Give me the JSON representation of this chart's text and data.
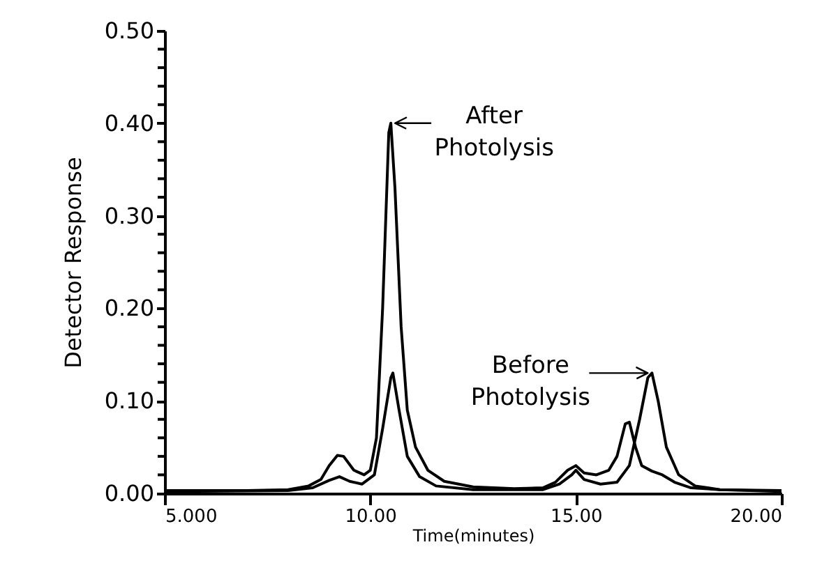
{
  "chart_data": {
    "type": "line",
    "xlabel": "Time(minutes)",
    "ylabel": "Detector Response",
    "series": [
      {
        "color": "#000000",
        "x": [
          5.0,
          6.0,
          7.0,
          8.0,
          8.5,
          8.8,
          9.0,
          9.2,
          9.35,
          9.6,
          9.85,
          10.0,
          10.15,
          10.3,
          10.45,
          10.5,
          10.6,
          10.75,
          10.9,
          11.1,
          11.4,
          11.8,
          12.5,
          13.5,
          14.2,
          14.5,
          14.8,
          15.0,
          15.2,
          15.5,
          15.8,
          16.0,
          16.2,
          16.3,
          16.45,
          16.6,
          16.85,
          17.1,
          17.4,
          17.8,
          18.5,
          20.0
        ],
        "values": [
          0.003,
          0.003,
          0.003,
          0.004,
          0.008,
          0.015,
          0.03,
          0.041,
          0.04,
          0.025,
          0.02,
          0.025,
          0.06,
          0.2,
          0.39,
          0.4,
          0.33,
          0.18,
          0.09,
          0.05,
          0.025,
          0.013,
          0.007,
          0.005,
          0.006,
          0.012,
          0.025,
          0.03,
          0.022,
          0.02,
          0.025,
          0.04,
          0.075,
          0.077,
          0.05,
          0.03,
          0.024,
          0.02,
          0.012,
          0.006,
          0.004,
          0.003
        ]
      },
      {
        "color": "#000000",
        "x": [
          5.0,
          8.0,
          8.6,
          9.0,
          9.25,
          9.5,
          9.8,
          10.1,
          10.3,
          10.5,
          10.55,
          10.7,
          10.9,
          11.2,
          11.6,
          12.5,
          14.2,
          14.6,
          14.9,
          15.0,
          15.2,
          15.6,
          16.0,
          16.3,
          16.55,
          16.75,
          16.85,
          17.0,
          17.2,
          17.5,
          17.9,
          18.5,
          20.0
        ],
        "values": [
          0.002,
          0.003,
          0.006,
          0.014,
          0.018,
          0.013,
          0.01,
          0.02,
          0.07,
          0.125,
          0.13,
          0.09,
          0.04,
          0.018,
          0.008,
          0.004,
          0.004,
          0.01,
          0.02,
          0.025,
          0.015,
          0.01,
          0.012,
          0.03,
          0.08,
          0.125,
          0.13,
          0.1,
          0.05,
          0.02,
          0.008,
          0.004,
          0.002
        ]
      }
    ],
    "annotations": [
      {
        "text": "After Photolysis",
        "x": 10.5,
        "y": 0.4
      },
      {
        "text": "Before Photolysis",
        "x": 16.85,
        "y": 0.13
      }
    ],
    "xlim": [
      5,
      20
    ],
    "xticks": [
      {
        "value": 5,
        "label": "5.000"
      },
      {
        "value": 10,
        "label": "10.00"
      },
      {
        "value": 15,
        "label": "15.00"
      },
      {
        "value": 20,
        "label": "20.00"
      }
    ],
    "ylim": [
      0,
      0.5
    ],
    "yticks": [
      {
        "value": 0,
        "label": "0.00"
      },
      {
        "value": 0.02,
        "label": null
      },
      {
        "value": 0.04,
        "label": null
      },
      {
        "value": 0.06,
        "label": null
      },
      {
        "value": 0.08,
        "label": null
      },
      {
        "value": 0.1,
        "label": "0.10"
      },
      {
        "value": 0.12,
        "label": null
      },
      {
        "value": 0.14,
        "label": null
      },
      {
        "value": 0.16,
        "label": null
      },
      {
        "value": 0.18,
        "label": null
      },
      {
        "value": 0.2,
        "label": "0.20"
      },
      {
        "value": 0.22,
        "label": null
      },
      {
        "value": 0.24,
        "label": null
      },
      {
        "value": 0.26,
        "label": null
      },
      {
        "value": 0.28,
        "label": null
      },
      {
        "value": 0.3,
        "label": "0.30"
      },
      {
        "value": 0.32,
        "label": null
      },
      {
        "value": 0.34,
        "label": null
      },
      {
        "value": 0.36,
        "label": null
      },
      {
        "value": 0.38,
        "label": null
      },
      {
        "value": 0.4,
        "label": "0.40"
      },
      {
        "value": 0.42,
        "label": null
      },
      {
        "value": 0.44,
        "label": null
      },
      {
        "value": 0.46,
        "label": null
      },
      {
        "value": 0.48,
        "label": null
      },
      {
        "value": 0.5,
        "label": "0.50"
      }
    ],
    "grid": false,
    "marker": "none",
    "line_style": "solid"
  }
}
